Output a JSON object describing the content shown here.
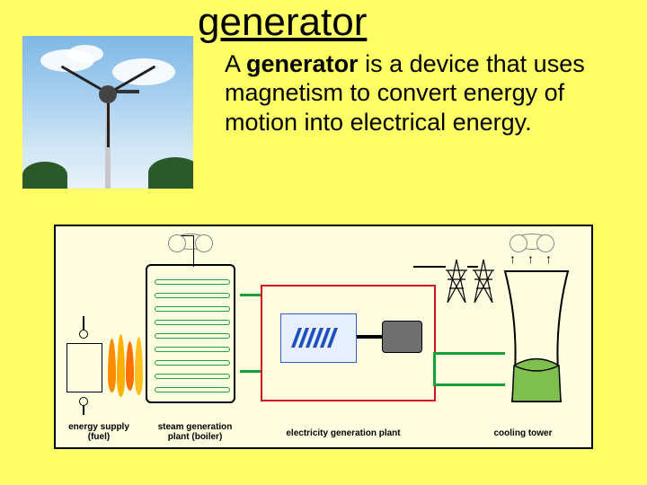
{
  "slide": {
    "title": "generator",
    "background_color": "#ffff66",
    "title_fontsize": 44,
    "definition": {
      "prefix": "A ",
      "bold_term": "generator",
      "rest": " is a device that uses magnetism to convert energy of motion into electrical energy.",
      "fontsize": 27,
      "color": "#000000"
    },
    "photo": {
      "subject": "wind-turbine",
      "sky_gradient": [
        "#7fb8e6",
        "#a8d0f0",
        "#cde4f5",
        "#e8f2fa"
      ],
      "pole_color": "#c8c8cc",
      "blade_color": "#222222",
      "bush_color": "#2a5a2a"
    },
    "diagram": {
      "type": "infographic",
      "background_color": "#fffde0",
      "border_color": "#000000",
      "labels": {
        "fuel": "energy supply\n(fuel)",
        "boiler": "steam generation\nplant (boiler)",
        "plant": "electricity generation plant",
        "tower": "cooling tower"
      },
      "label_fontsize": 10,
      "label_fontweight": "bold",
      "colors": {
        "flame": [
          "#ff8c00",
          "#ffb000",
          "#ff7000",
          "#ffc020"
        ],
        "coil": "#20a040",
        "pipe": "#18a038",
        "plant_border": "#d01020",
        "turbine_case": "#3060d0",
        "turbine_fill": "#e8f0ff",
        "turbine_blade": "#2050c0",
        "generator": "#707070",
        "water": "#7fbf4f",
        "pylon": "#000000"
      },
      "arrow_glyph": "↑"
    }
  }
}
